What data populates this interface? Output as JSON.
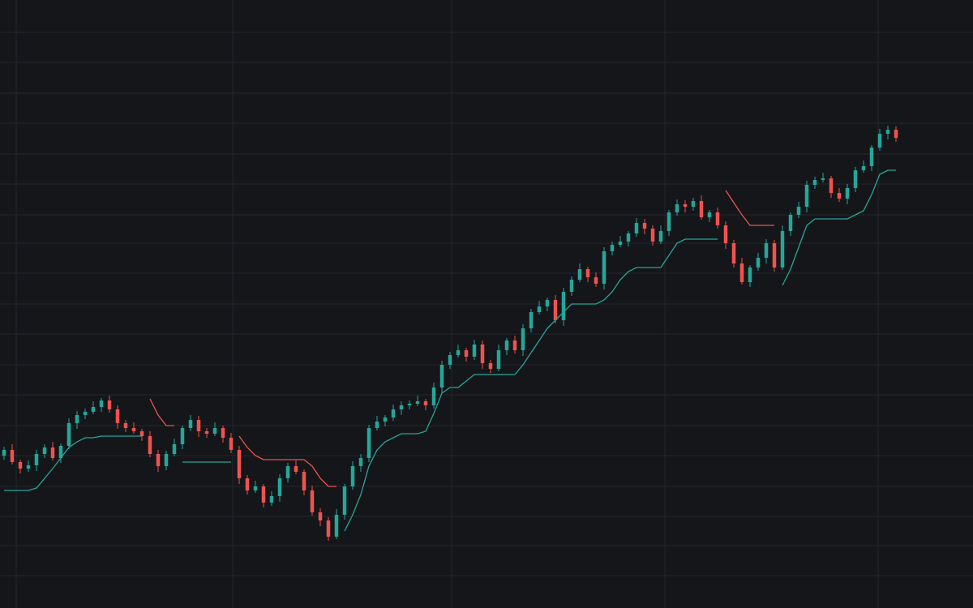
{
  "chart_data": {
    "type": "candlestick",
    "x": [
      0,
      1,
      2,
      3,
      4,
      5,
      6,
      7,
      8,
      9,
      10,
      11,
      12,
      13,
      14,
      15,
      16,
      17,
      18,
      19,
      20,
      21,
      22,
      23,
      24,
      25,
      26,
      27,
      28,
      29,
      30,
      31,
      32,
      33,
      34,
      35,
      36,
      37,
      38,
      39,
      40,
      41,
      42,
      43,
      44,
      45,
      46,
      47,
      48,
      49,
      50,
      51,
      52,
      53,
      54,
      55,
      56,
      57,
      58,
      59,
      60,
      61,
      62,
      63,
      64,
      65,
      66,
      67,
      68,
      69,
      70,
      71,
      72,
      73,
      74,
      75,
      76,
      77,
      78,
      79,
      80,
      81,
      82,
      83,
      84,
      85,
      86,
      87,
      88,
      89,
      90,
      91,
      92,
      93,
      94,
      95,
      96,
      97,
      98,
      99,
      100,
      101,
      102,
      103,
      104,
      105,
      106,
      107,
      108,
      109,
      110
    ],
    "open": [
      188,
      195,
      180,
      172,
      176,
      190,
      198,
      185,
      200,
      228,
      238,
      242,
      248,
      256,
      245,
      228,
      222,
      218,
      212,
      190,
      175,
      190,
      202,
      222,
      232,
      218,
      215,
      222,
      210,
      195,
      160,
      145,
      150,
      130,
      138,
      160,
      175,
      168,
      145,
      118,
      108,
      88,
      115,
      150,
      175,
      185,
      222,
      230,
      235,
      245,
      250,
      252,
      255,
      250,
      272,
      300,
      312,
      318,
      310,
      325,
      302,
      295,
      318,
      330,
      318,
      345,
      365,
      372,
      380,
      355,
      390,
      405,
      418,
      408,
      400,
      440,
      448,
      452,
      462,
      475,
      468,
      452,
      465,
      488,
      498,
      495,
      502,
      482,
      488,
      472,
      450,
      425,
      402,
      420,
      432,
      450,
      420,
      465,
      485,
      495,
      522,
      528,
      530,
      512,
      505,
      518,
      540,
      545,
      568,
      585,
      590
    ],
    "high": [
      199,
      202,
      183,
      182,
      195,
      202,
      205,
      203,
      234,
      243,
      246,
      255,
      259,
      262,
      250,
      232,
      229,
      221,
      218,
      195,
      194,
      209,
      225,
      238,
      237,
      222,
      229,
      225,
      216,
      200,
      164,
      157,
      153,
      144,
      165,
      179,
      182,
      171,
      151,
      123,
      112,
      122,
      153,
      181,
      190,
      226,
      237,
      238,
      251,
      255,
      256,
      262,
      258,
      278,
      305,
      316,
      325,
      321,
      331,
      330,
      306,
      325,
      333,
      336,
      350,
      369,
      379,
      383,
      386,
      395,
      409,
      425,
      421,
      414,
      445,
      452,
      459,
      465,
      481,
      480,
      472,
      472,
      491,
      504,
      503,
      506,
      509,
      491,
      494,
      477,
      454,
      432,
      423,
      438,
      455,
      454,
      472,
      488,
      501,
      527,
      532,
      537,
      533,
      518,
      523,
      544,
      552,
      571,
      591,
      595,
      594
    ],
    "low": [
      183,
      177,
      166,
      168,
      169,
      185,
      182,
      179,
      196,
      221,
      233,
      239,
      242,
      241,
      221,
      217,
      215,
      206,
      186,
      168,
      170,
      187,
      196,
      218,
      211,
      210,
      212,
      204,
      191,
      153,
      140,
      142,
      124,
      126,
      131,
      155,
      165,
      139,
      114,
      101,
      83,
      85,
      109,
      146,
      168,
      180,
      219,
      224,
      231,
      238,
      245,
      249,
      244,
      246,
      265,
      295,
      309,
      304,
      306,
      295,
      290,
      292,
      312,
      314,
      311,
      340,
      362,
      366,
      351,
      348,
      385,
      402,
      402,
      396,
      393,
      435,
      445,
      446,
      458,
      461,
      447,
      449,
      459,
      484,
      488,
      490,
      479,
      476,
      468,
      443,
      420,
      399,
      396,
      416,
      425,
      415,
      417,
      459,
      481,
      488,
      517,
      525,
      506,
      501,
      498,
      513,
      537,
      539,
      564,
      578,
      575
    ],
    "close": [
      195,
      180,
      172,
      176,
      190,
      198,
      185,
      200,
      228,
      238,
      242,
      248,
      256,
      245,
      228,
      222,
      218,
      212,
      190,
      175,
      190,
      202,
      222,
      232,
      218,
      215,
      222,
      210,
      195,
      160,
      145,
      150,
      130,
      138,
      160,
      175,
      168,
      145,
      118,
      108,
      88,
      115,
      150,
      175,
      185,
      222,
      230,
      235,
      245,
      250,
      252,
      255,
      250,
      272,
      300,
      312,
      318,
      310,
      325,
      302,
      295,
      318,
      330,
      318,
      345,
      365,
      372,
      380,
      355,
      390,
      405,
      418,
      408,
      400,
      440,
      448,
      452,
      462,
      475,
      468,
      452,
      465,
      488,
      498,
      495,
      502,
      482,
      488,
      472,
      450,
      425,
      402,
      420,
      432,
      450,
      420,
      465,
      485,
      495,
      522,
      528,
      530,
      512,
      505,
      518,
      540,
      545,
      568,
      585,
      590,
      580
    ],
    "up_color": "#26a69a",
    "down_color": "#ef5350",
    "series": [
      {
        "color": "#26a69a",
        "values": [
          145,
          145,
          145,
          145,
          148,
          160,
          172,
          185,
          198,
          205,
          210,
          210,
          212,
          212,
          212,
          212,
          212,
          212,
          null,
          null,
          null,
          null,
          180,
          180,
          180,
          180,
          180,
          180,
          180,
          null,
          null,
          null,
          null,
          null,
          null,
          null,
          null,
          null,
          null,
          null,
          null,
          null,
          95,
          115,
          140,
          175,
          195,
          205,
          210,
          215,
          215,
          215,
          218,
          240,
          265,
          272,
          272,
          280,
          288,
          288,
          288,
          288,
          288,
          288,
          300,
          315,
          330,
          345,
          355,
          365,
          375,
          375,
          375,
          375,
          380,
          390,
          405,
          415,
          420,
          420,
          420,
          420,
          435,
          450,
          455,
          455,
          455,
          455,
          455,
          null,
          null,
          null,
          null,
          null,
          null,
          null,
          398,
          418,
          445,
          472,
          480,
          480,
          480,
          480,
          480,
          485,
          490,
          510,
          535,
          540,
          540
        ]
      },
      {
        "color": "#ef5350",
        "values": [
          null,
          null,
          null,
          null,
          null,
          null,
          null,
          null,
          null,
          null,
          null,
          null,
          null,
          null,
          null,
          null,
          null,
          null,
          258,
          238,
          225,
          225,
          null,
          null,
          null,
          null,
          null,
          null,
          null,
          212,
          198,
          188,
          183,
          183,
          183,
          183,
          183,
          183,
          175,
          160,
          150,
          150,
          null,
          null,
          null,
          null,
          null,
          null,
          null,
          null,
          null,
          null,
          null,
          null,
          null,
          null,
          null,
          null,
          null,
          null,
          null,
          null,
          null,
          null,
          null,
          null,
          null,
          null,
          null,
          null,
          null,
          null,
          null,
          null,
          null,
          null,
          null,
          null,
          null,
          null,
          null,
          null,
          null,
          null,
          null,
          null,
          null,
          null,
          null,
          515,
          500,
          485,
          472,
          472,
          472,
          472,
          null,
          null,
          null,
          null,
          null,
          null,
          null,
          null,
          null,
          null,
          null,
          null,
          null,
          null,
          null
        ]
      }
    ],
    "xlim": [
      -0.5,
      119.5
    ],
    "ylim": [
      0,
      750
    ],
    "xticks": [
      1.5,
      28.2,
      55.2,
      81.5,
      107.8
    ],
    "yticks": [
      40,
      77,
      113,
      150,
      188,
      225,
      263,
      300,
      338,
      375,
      413,
      450,
      485,
      523,
      560,
      598,
      635,
      673,
      710
    ],
    "grid": true,
    "grid_color": "#23262d",
    "background": "#151619"
  }
}
